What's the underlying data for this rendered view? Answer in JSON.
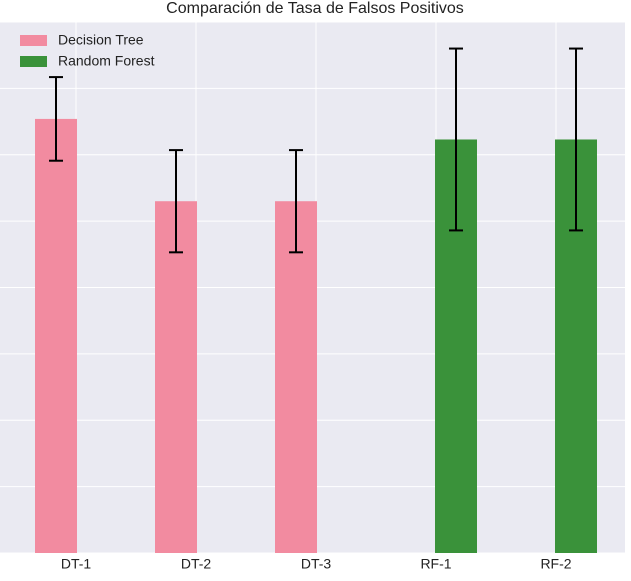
{
  "chart_data": {
    "type": "bar",
    "title": "Comparación de Tasa de Falsos Positivos",
    "categories": [
      "DT-1",
      "DT-2",
      "DT-3",
      "RF-1",
      "RF-2"
    ],
    "series": [
      {
        "name": "Decision Tree",
        "color": "#f28ba0",
        "values": [
          6.54,
          5.3,
          5.3,
          null,
          null
        ],
        "errors": [
          0.63,
          0.77,
          0.77,
          null,
          null
        ]
      },
      {
        "name": "Random Forest",
        "color": "#3a923a",
        "values": [
          null,
          null,
          null,
          6.23,
          6.23
        ],
        "errors": [
          null,
          null,
          null,
          1.37,
          1.37
        ]
      }
    ],
    "ylim": [
      0,
      8
    ],
    "yticks": [
      0,
      1,
      2,
      3,
      4,
      5,
      6,
      7,
      8
    ],
    "grid": true,
    "legend": "upper left"
  }
}
